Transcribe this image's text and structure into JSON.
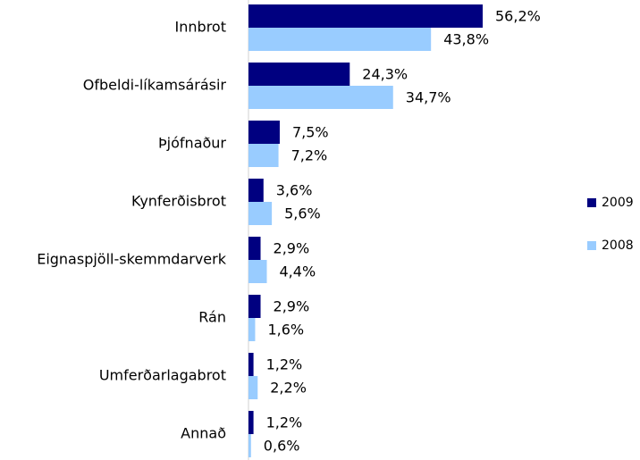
{
  "chart_data": {
    "type": "hbar",
    "categories": [
      "Innbrot",
      "Ofbeldi-líkamsárásir",
      "Þjófnaður",
      "Kynferðisbrot",
      "Eignaspjöll-skemmdarverk",
      "Rán",
      "Umferðarlagabrot",
      "Annað"
    ],
    "series": [
      {
        "name": "2009",
        "color": "#000080",
        "values": [
          56.2,
          24.3,
          7.5,
          3.6,
          2.9,
          2.9,
          1.2,
          1.2
        ],
        "value_labels": [
          "56,2%",
          "24,3%",
          "7,5%",
          "3,6%",
          "2,9%",
          "2,9%",
          "1,2%",
          "1,2%"
        ]
      },
      {
        "name": "2008",
        "color": "#99ccff",
        "values": [
          43.8,
          34.7,
          7.2,
          5.6,
          4.4,
          1.6,
          2.2,
          0.6
        ],
        "value_labels": [
          "43,8%",
          "34,7%",
          "7,2%",
          "5,6%",
          "4,4%",
          "1,6%",
          "2,2%",
          "0,6%"
        ]
      }
    ],
    "legend": "right"
  }
}
